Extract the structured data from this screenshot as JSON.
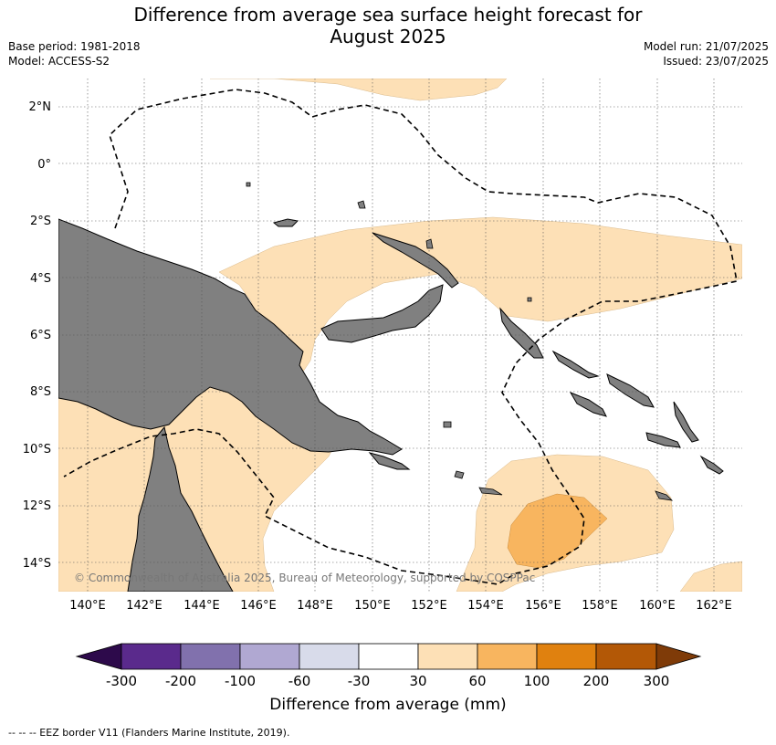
{
  "header": {
    "title_line1": "Difference from average sea surface height forecast for",
    "title_line2": "August 2025",
    "base_period": "Base period: 1981-2018",
    "model": "Model: ACCESS-S2",
    "model_run": "Model run: 21/07/2025",
    "issued": "Issued: 23/07/2025"
  },
  "map": {
    "longitude_labels": [
      "140°E",
      "142°E",
      "144°E",
      "146°E",
      "148°E",
      "150°E",
      "152°E",
      "154°E",
      "156°E",
      "158°E",
      "160°E",
      "162°E"
    ],
    "latitude_labels": [
      "2°N",
      "0°",
      "2°S",
      "4°S",
      "6°S",
      "8°S",
      "10°S",
      "12°S",
      "14°S"
    ],
    "copyright": "© Commonwealth of Australia 2025, Bureau of Meteorology, supported by COSPPac"
  },
  "colorbar": {
    "ticks": [
      "-300",
      "-200",
      "-100",
      "-60",
      "-30",
      "30",
      "60",
      "100",
      "200",
      "300"
    ],
    "colors": [
      "#2d0a4b",
      "#5a2a8c",
      "#8171ad",
      "#b0a8d2",
      "#d8dbea",
      "#ffffff",
      "#fde0b6",
      "#f8b55f",
      "#e0810f",
      "#b35806",
      "#7f3b08"
    ],
    "label": "Difference from average (mm)"
  },
  "footnote": "--  --  -- EEZ border V11 (Flanders Marine Institute, 2019)."
}
